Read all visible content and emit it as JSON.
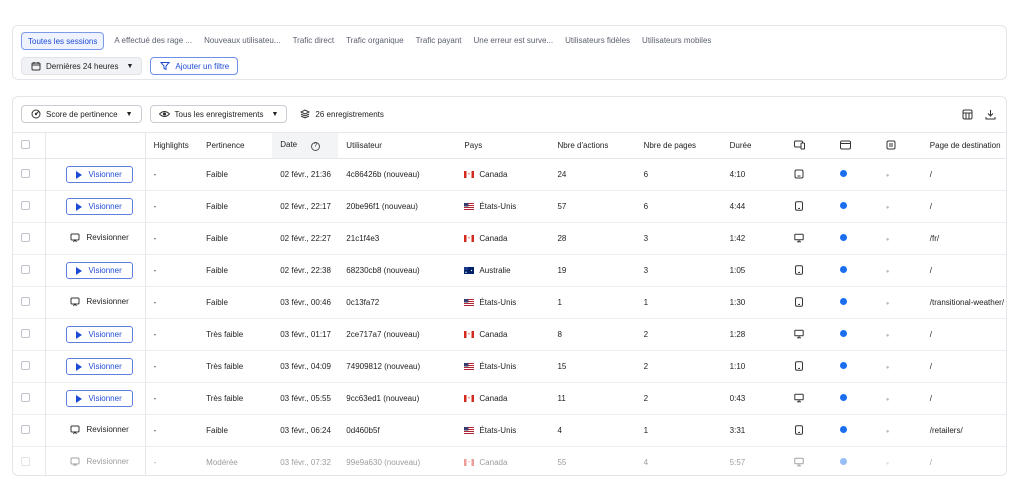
{
  "segments": {
    "tabs": [
      "Toutes les sessions",
      "A effectué des rage ...",
      "Nouveaux utilisateu...",
      "Trafic direct",
      "Trafic organique",
      "Trafic payant",
      "Une erreur est surve...",
      "Utilisateurs fidèles",
      "Utilisateurs mobiles"
    ],
    "date_range": "Dernières 24 heures",
    "add_filter": "Ajouter un filtre"
  },
  "toolbar": {
    "sort_label": "Score de pertinence",
    "recordings_filter": "Tous les enregistrements",
    "count_label": "26 enregistrements"
  },
  "table": {
    "headers": {
      "highlights": "Highlights",
      "pertinence": "Pertinence",
      "date": "Date",
      "user": "Utilisateur",
      "country": "Pays",
      "actions": "Nbre d'actions",
      "pages": "Nbre de pages",
      "duration": "Durée",
      "landing": "Page de destination"
    },
    "rows": [
      {
        "action": "Visionner",
        "highlights": "-",
        "pertinence": "Faible",
        "date": "02 févr., 21:36",
        "user": "4c86426b (nouveau)",
        "country": "Canada",
        "flag": "ca",
        "actions": "24",
        "pages": "6",
        "duration": "4:10",
        "device": "tablet",
        "landing": "/"
      },
      {
        "action": "Visionner",
        "highlights": "-",
        "pertinence": "Faible",
        "date": "02 févr., 22:17",
        "user": "20be96f1 (nouveau)",
        "country": "États-Unis",
        "flag": "us",
        "actions": "57",
        "pages": "6",
        "duration": "4:44",
        "device": "phone",
        "landing": "/"
      },
      {
        "action": "Revisionner",
        "highlights": "-",
        "pertinence": "Faible",
        "date": "02 févr., 22:27",
        "user": "21c1f4e3",
        "country": "Canada",
        "flag": "ca",
        "actions": "28",
        "pages": "3",
        "duration": "1:42",
        "device": "desktop",
        "landing": "/fr/"
      },
      {
        "action": "Visionner",
        "highlights": "-",
        "pertinence": "Faible",
        "date": "02 févr., 22:38",
        "user": "68230cb8 (nouveau)",
        "country": "Australie",
        "flag": "au",
        "actions": "19",
        "pages": "3",
        "duration": "1:05",
        "device": "phone",
        "landing": "/"
      },
      {
        "action": "Revisionner",
        "highlights": "-",
        "pertinence": "Faible",
        "date": "03 févr., 00:46",
        "user": "0c13fa72",
        "country": "États-Unis",
        "flag": "us",
        "actions": "1",
        "pages": "1",
        "duration": "1:30",
        "device": "phone",
        "landing": "/transitional-weather/"
      },
      {
        "action": "Visionner",
        "highlights": "-",
        "pertinence": "Très faible",
        "date": "03 févr., 01:17",
        "user": "2ce717a7 (nouveau)",
        "country": "Canada",
        "flag": "ca",
        "actions": "8",
        "pages": "2",
        "duration": "1:28",
        "device": "desktop",
        "landing": "/"
      },
      {
        "action": "Visionner",
        "highlights": "-",
        "pertinence": "Très faible",
        "date": "03 févr., 04:09",
        "user": "74909812 (nouveau)",
        "country": "États-Unis",
        "flag": "us",
        "actions": "15",
        "pages": "2",
        "duration": "1:10",
        "device": "phone",
        "landing": "/"
      },
      {
        "action": "Visionner",
        "highlights": "-",
        "pertinence": "Très faible",
        "date": "03 févr., 05:55",
        "user": "9cc63ed1 (nouveau)",
        "country": "Canada",
        "flag": "ca",
        "actions": "11",
        "pages": "2",
        "duration": "0:43",
        "device": "desktop",
        "landing": "/"
      },
      {
        "action": "Revisionner",
        "highlights": "-",
        "pertinence": "Faible",
        "date": "03 févr., 06:24",
        "user": "0d460b5f",
        "country": "États-Unis",
        "flag": "us",
        "actions": "4",
        "pages": "1",
        "duration": "3:31",
        "device": "phone",
        "landing": "/retailers/"
      },
      {
        "action": "Revisionner",
        "highlights": "-",
        "pertinence": "Modérée",
        "date": "03 févr., 07:32",
        "user": "99e9a630 (nouveau)",
        "country": "Canada",
        "flag": "ca",
        "actions": "55",
        "pages": "4",
        "duration": "5:57",
        "device": "desktop",
        "landing": "/"
      }
    ]
  },
  "colors": {
    "accent": "#1f4bd6",
    "browser_dot": "#1a6ef0"
  },
  "icons": {
    "device_column": "device-icon",
    "browser_column": "browser-icon",
    "os_column": "os-icon",
    "table_settings": "table-settings-icon",
    "download": "download-icon"
  }
}
